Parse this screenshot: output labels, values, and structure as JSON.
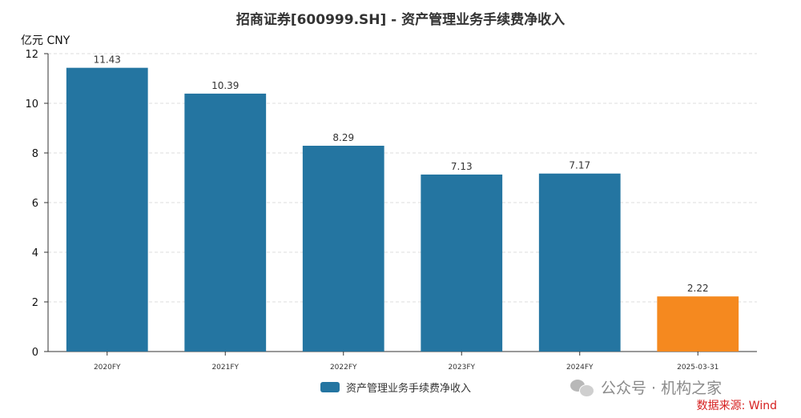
{
  "chart_data": {
    "type": "bar",
    "title": "招商证券[600999.SH] - 资产管理业务手续费净收入",
    "ylabel": "亿元  CNY",
    "xlabel": "",
    "categories": [
      "2020FY",
      "2021FY",
      "2022FY",
      "2023FY",
      "2024FY",
      "2025-03-31"
    ],
    "series": [
      {
        "name": "资产管理业务手续费净收入",
        "values": [
          11.43,
          10.39,
          8.29,
          7.13,
          7.17,
          2.22
        ]
      }
    ],
    "value_labels": [
      "11.43",
      "10.39",
      "8.29",
      "7.13",
      "7.17",
      "2.22"
    ],
    "ylim": [
      0,
      12
    ],
    "yticks": [
      "0",
      "2",
      "4",
      "6",
      "8",
      "10",
      "12"
    ],
    "grid": true,
    "legend_position": "bottom-center",
    "colors": {
      "bar": "#2475a1",
      "highlight": "#f5891f",
      "grid": "#dddddd",
      "axis": "#333333"
    },
    "highlight_index": 5
  },
  "watermark": {
    "icon": "wechat-icon",
    "text": "公众号 · 机构之家"
  },
  "source": "数据来源: Wind"
}
